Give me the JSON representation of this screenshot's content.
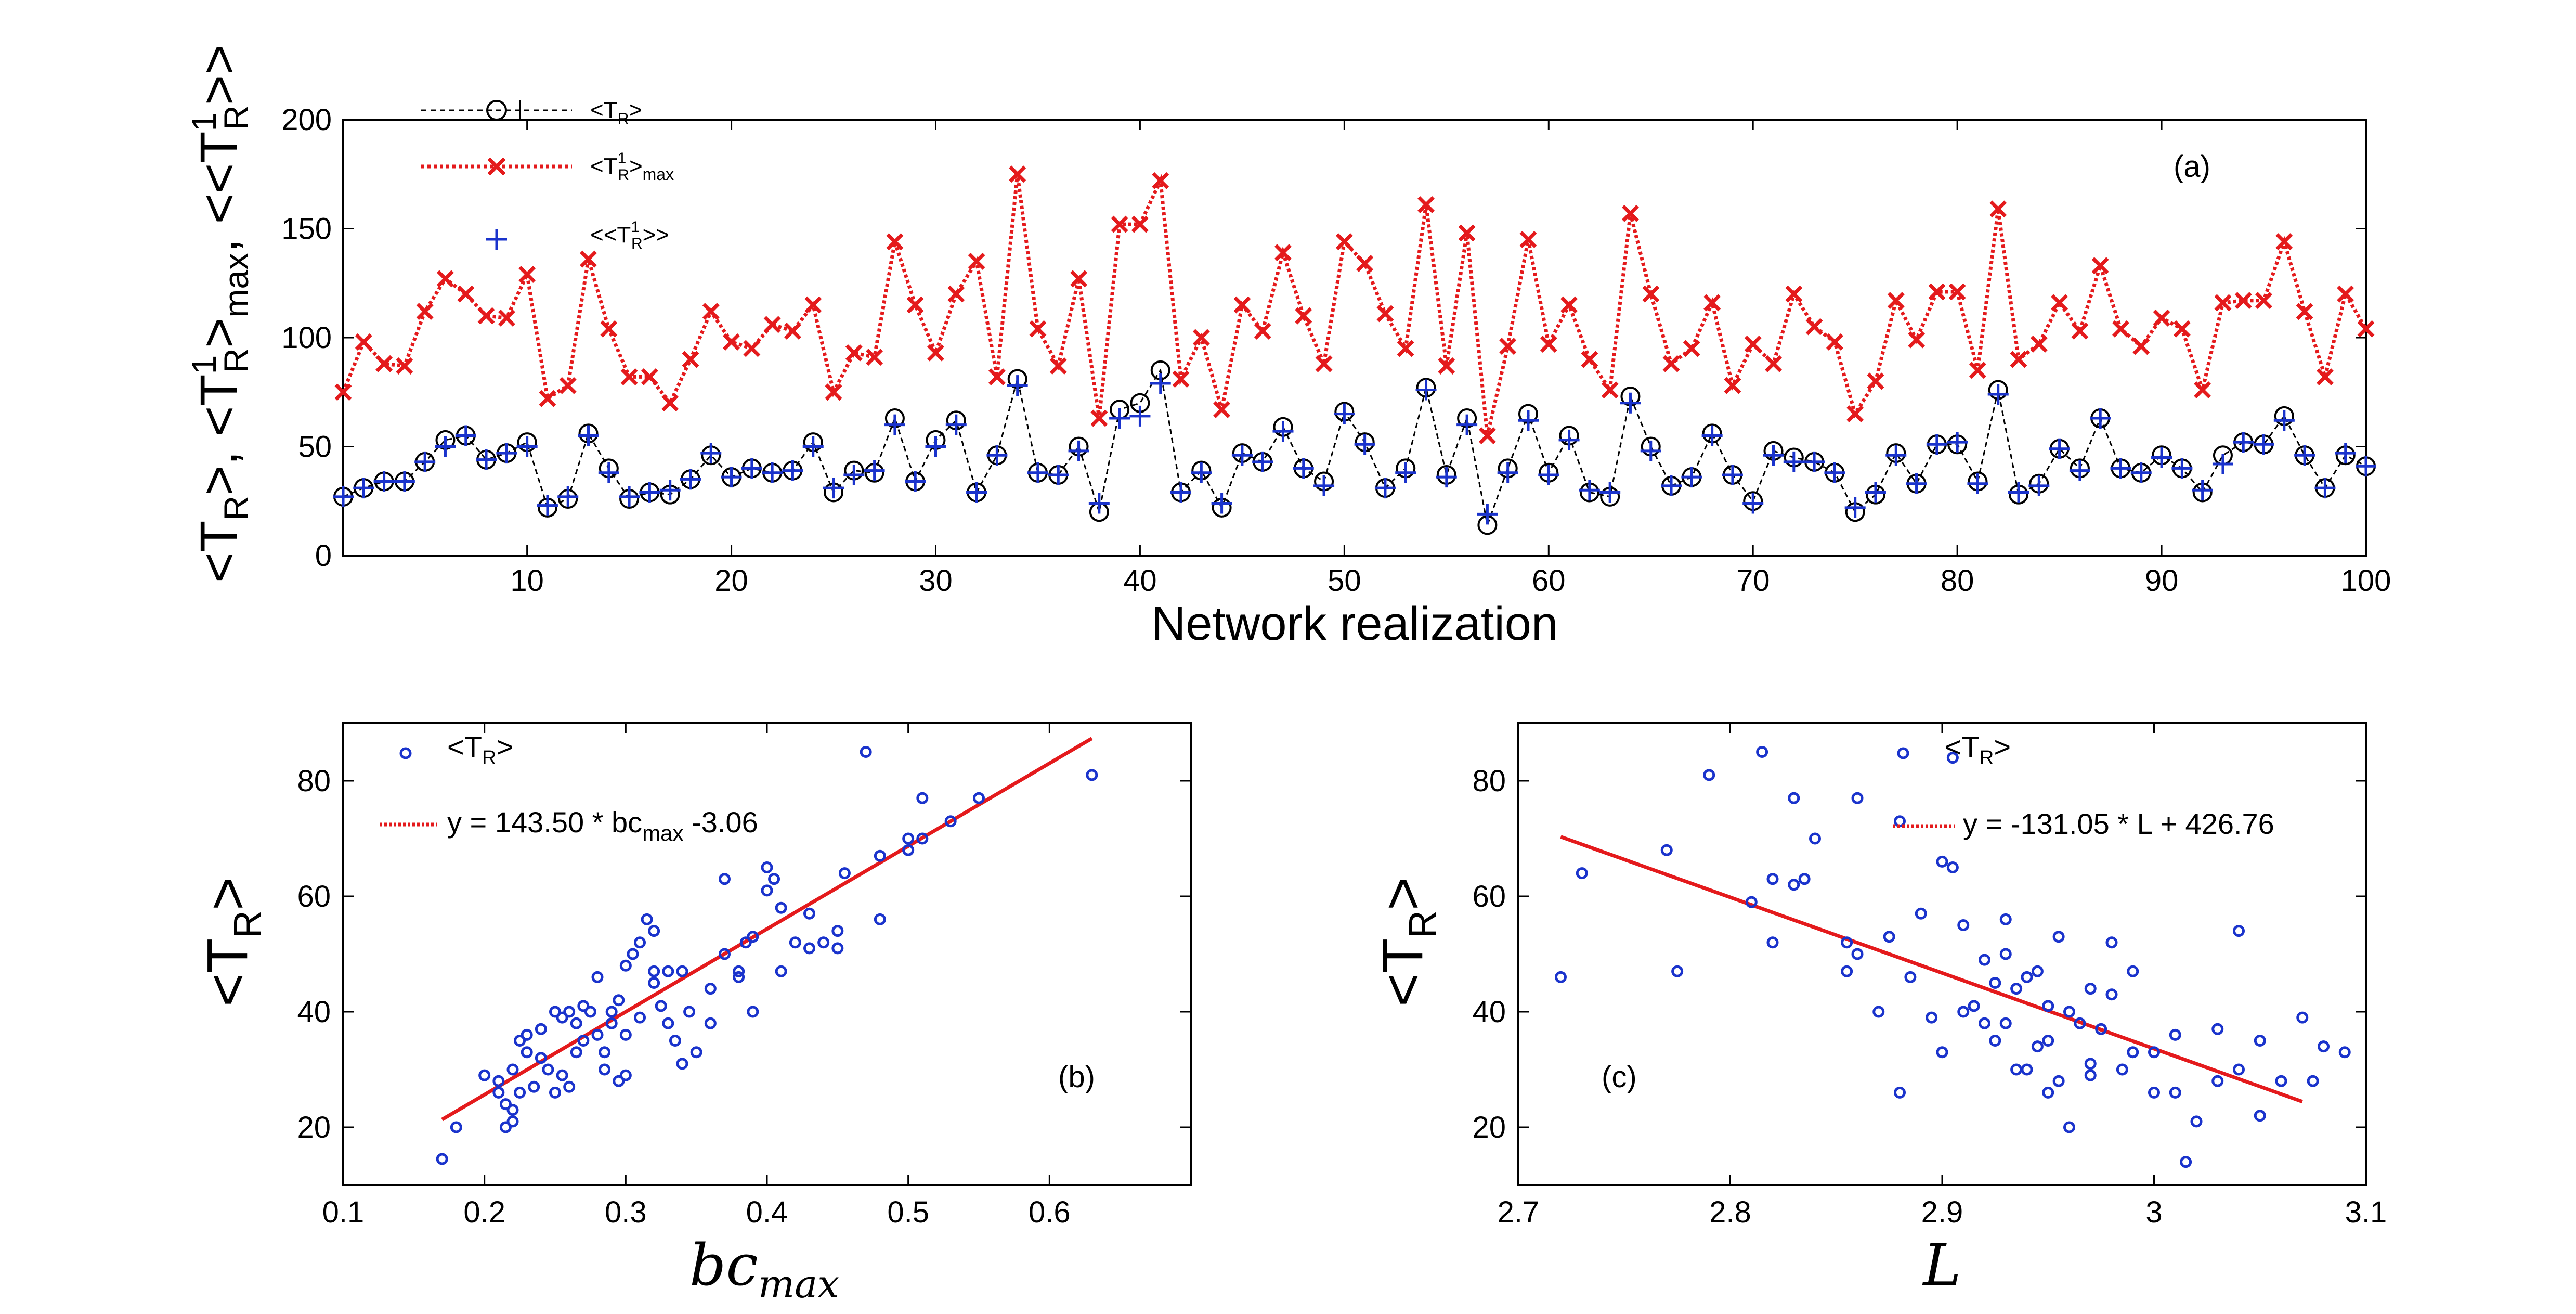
{
  "chart_data": [
    {
      "panel": "(a)",
      "type": "line",
      "xlabel": "Network realization",
      "ylabel": "<T_R>, <T_R^1>_max, <<T_R^1>>",
      "xlim": [
        1,
        100
      ],
      "ylim": [
        0,
        200
      ],
      "xticks": [
        10,
        20,
        30,
        40,
        50,
        60,
        70,
        80,
        90,
        100
      ],
      "yticks": [
        0,
        50,
        100,
        150,
        200
      ],
      "x": [
        1,
        2,
        3,
        4,
        5,
        6,
        7,
        8,
        9,
        10,
        11,
        12,
        13,
        14,
        15,
        16,
        17,
        18,
        19,
        20,
        21,
        22,
        23,
        24,
        25,
        26,
        27,
        28,
        29,
        30,
        31,
        32,
        33,
        34,
        35,
        36,
        37,
        38,
        39,
        40,
        41,
        42,
        43,
        44,
        45,
        46,
        47,
        48,
        49,
        50,
        51,
        52,
        53,
        54,
        55,
        56,
        57,
        58,
        59,
        60,
        61,
        62,
        63,
        64,
        65,
        66,
        67,
        68,
        69,
        70,
        71,
        72,
        73,
        74,
        75,
        76,
        77,
        78,
        79,
        80,
        81,
        82,
        83,
        84,
        85,
        86,
        87,
        88,
        89,
        90,
        91,
        92,
        93,
        94,
        95,
        96,
        97,
        98,
        99,
        100
      ],
      "series": [
        {
          "name": "<T_R>",
          "style": "black dashed, circle markers",
          "color": "#000000",
          "values": [
            27,
            31,
            34,
            34,
            43,
            53,
            55,
            44,
            47,
            52,
            22,
            26,
            56,
            40,
            26,
            29,
            28,
            35,
            46,
            36,
            40,
            38,
            39,
            52,
            29,
            39,
            38,
            63,
            34,
            53,
            62,
            29,
            46,
            81,
            38,
            37,
            50,
            20,
            67,
            70,
            85,
            29,
            39,
            22,
            47,
            43,
            59,
            40,
            34,
            66,
            52,
            31,
            40,
            77,
            37,
            63,
            14,
            40,
            65,
            38,
            55,
            29,
            27,
            73,
            50,
            32,
            36,
            56,
            37,
            25,
            48,
            45,
            43,
            38,
            20,
            28,
            47,
            33,
            51,
            51,
            34,
            76,
            28,
            33,
            49,
            40,
            63,
            40,
            38,
            46,
            40,
            29,
            46,
            52,
            51,
            64,
            46,
            31,
            46,
            41
          ]
        },
        {
          "name": "<T_R^1>_max",
          "style": "red dotted, x markers",
          "color": "#e41a1c",
          "values": [
            75,
            98,
            88,
            87,
            112,
            127,
            120,
            110,
            109,
            129,
            72,
            78,
            136,
            104,
            82,
            82,
            70,
            90,
            112,
            98,
            95,
            106,
            103,
            115,
            75,
            93,
            91,
            144,
            115,
            93,
            120,
            135,
            82,
            175,
            104,
            87,
            127,
            63,
            152,
            152,
            172,
            81,
            100,
            67,
            115,
            103,
            139,
            110,
            88,
            144,
            134,
            111,
            95,
            161,
            87,
            148,
            55,
            96,
            145,
            97,
            115,
            90,
            76,
            157,
            120,
            88,
            95,
            116,
            78,
            97,
            88,
            120,
            105,
            98,
            65,
            80,
            117,
            99,
            121,
            121,
            85,
            159,
            90,
            97,
            116,
            103,
            133,
            104,
            96,
            109,
            104,
            76,
            116,
            117,
            117,
            144,
            112,
            82,
            120,
            104
          ]
        },
        {
          "name": "<<T_R^1>>",
          "style": "blue plus markers",
          "color": "#1a33cc",
          "values": [
            27,
            31,
            34,
            34,
            43,
            50,
            55,
            44,
            47,
            50,
            23,
            27,
            55,
            38,
            27,
            29,
            30,
            35,
            47,
            36,
            40,
            38,
            39,
            50,
            31,
            37,
            39,
            60,
            34,
            50,
            60,
            29,
            46,
            78,
            38,
            37,
            48,
            24,
            63,
            64,
            79,
            29,
            38,
            24,
            46,
            43,
            57,
            40,
            32,
            65,
            51,
            31,
            38,
            76,
            36,
            60,
            19,
            38,
            62,
            37,
            53,
            30,
            29,
            70,
            48,
            32,
            36,
            55,
            37,
            24,
            46,
            43,
            43,
            38,
            22,
            29,
            46,
            33,
            51,
            52,
            33,
            74,
            29,
            32,
            49,
            39,
            63,
            40,
            38,
            45,
            40,
            30,
            42,
            52,
            51,
            62,
            46,
            31,
            47,
            41
          ]
        }
      ]
    },
    {
      "panel": "(b)",
      "type": "scatter",
      "xlabel": "bc_max",
      "ylabel": "<T_R>",
      "xlim": [
        0.1,
        0.7
      ],
      "ylim": [
        10,
        90
      ],
      "xticks": [
        0.1,
        0.2,
        0.3,
        0.4,
        0.5,
        0.6
      ],
      "yticks": [
        20,
        40,
        60,
        80
      ],
      "series": [
        {
          "name": "<T_R>",
          "color": "#1a33cc",
          "points": [
            [
              0.17,
              14.5
            ],
            [
              0.18,
              20
            ],
            [
              0.2,
              29
            ],
            [
              0.21,
              26
            ],
            [
              0.21,
              28
            ],
            [
              0.215,
              20
            ],
            [
              0.215,
              24
            ],
            [
              0.22,
              23
            ],
            [
              0.22,
              21
            ],
            [
              0.22,
              30
            ],
            [
              0.225,
              26
            ],
            [
              0.225,
              35
            ],
            [
              0.23,
              33
            ],
            [
              0.23,
              36
            ],
            [
              0.235,
              27
            ],
            [
              0.24,
              37
            ],
            [
              0.24,
              32
            ],
            [
              0.245,
              30
            ],
            [
              0.25,
              40
            ],
            [
              0.25,
              26
            ],
            [
              0.255,
              29
            ],
            [
              0.255,
              39
            ],
            [
              0.26,
              40
            ],
            [
              0.26,
              27
            ],
            [
              0.265,
              38
            ],
            [
              0.265,
              33
            ],
            [
              0.27,
              35
            ],
            [
              0.27,
              41
            ],
            [
              0.275,
              40
            ],
            [
              0.28,
              36
            ],
            [
              0.28,
              46
            ],
            [
              0.285,
              33
            ],
            [
              0.285,
              30
            ],
            [
              0.29,
              38
            ],
            [
              0.29,
              40
            ],
            [
              0.295,
              28
            ],
            [
              0.295,
              42
            ],
            [
              0.3,
              36
            ],
            [
              0.3,
              48
            ],
            [
              0.3,
              29
            ],
            [
              0.305,
              50
            ],
            [
              0.31,
              52
            ],
            [
              0.31,
              39
            ],
            [
              0.315,
              56
            ],
            [
              0.32,
              47
            ],
            [
              0.32,
              45
            ],
            [
              0.32,
              54
            ],
            [
              0.325,
              41
            ],
            [
              0.33,
              47
            ],
            [
              0.33,
              38
            ],
            [
              0.335,
              35
            ],
            [
              0.34,
              47
            ],
            [
              0.34,
              31
            ],
            [
              0.345,
              40
            ],
            [
              0.35,
              33
            ],
            [
              0.36,
              38
            ],
            [
              0.36,
              44
            ],
            [
              0.37,
              50
            ],
            [
              0.37,
              63
            ],
            [
              0.38,
              46
            ],
            [
              0.38,
              47
            ],
            [
              0.385,
              52
            ],
            [
              0.39,
              40
            ],
            [
              0.39,
              53
            ],
            [
              0.4,
              61
            ],
            [
              0.4,
              65
            ],
            [
              0.405,
              63
            ],
            [
              0.41,
              47
            ],
            [
              0.41,
              58
            ],
            [
              0.42,
              52
            ],
            [
              0.43,
              51
            ],
            [
              0.43,
              57
            ],
            [
              0.44,
              52
            ],
            [
              0.45,
              54
            ],
            [
              0.45,
              51
            ],
            [
              0.455,
              64
            ],
            [
              0.47,
              85
            ],
            [
              0.48,
              67
            ],
            [
              0.48,
              56
            ],
            [
              0.5,
              70
            ],
            [
              0.5,
              68
            ],
            [
              0.51,
              77
            ],
            [
              0.51,
              70
            ],
            [
              0.53,
              73
            ],
            [
              0.55,
              77
            ],
            [
              0.63,
              81
            ]
          ]
        },
        {
          "name": "y = 143.50 * bc_max -3.06",
          "type": "line",
          "color": "#e41a1c",
          "slope": 143.5,
          "intercept": -3.06,
          "x_range": [
            0.17,
            0.63
          ]
        }
      ],
      "legend": [
        "<T_R>",
        "y = 143.50 * bc_max -3.06"
      ]
    },
    {
      "panel": "(c)",
      "type": "scatter",
      "xlabel": "L",
      "ylabel": "<T_R>",
      "xlim": [
        2.7,
        3.1
      ],
      "ylim": [
        10,
        90
      ],
      "xticks": [
        2.7,
        2.8,
        2.9,
        3.0,
        3.1
      ],
      "yticks": [
        20,
        40,
        60,
        80
      ],
      "series": [
        {
          "name": "<T_R>",
          "color": "#1a33cc",
          "points": [
            [
              2.72,
              46
            ],
            [
              2.73,
              64
            ],
            [
              2.77,
              68
            ],
            [
              2.775,
              47
            ],
            [
              2.79,
              81
            ],
            [
              2.81,
              59
            ],
            [
              2.815,
              85
            ],
            [
              2.82,
              63
            ],
            [
              2.82,
              52
            ],
            [
              2.83,
              62
            ],
            [
              2.83,
              77
            ],
            [
              2.835,
              63
            ],
            [
              2.84,
              70
            ],
            [
              2.855,
              47
            ],
            [
              2.855,
              52
            ],
            [
              2.86,
              77
            ],
            [
              2.86,
              50
            ],
            [
              2.87,
              40
            ],
            [
              2.875,
              53
            ],
            [
              2.88,
              73
            ],
            [
              2.88,
              26
            ],
            [
              2.885,
              46
            ],
            [
              2.89,
              57
            ],
            [
              2.895,
              39
            ],
            [
              2.9,
              33
            ],
            [
              2.9,
              66
            ],
            [
              2.905,
              84
            ],
            [
              2.905,
              65
            ],
            [
              2.91,
              55
            ],
            [
              2.91,
              40
            ],
            [
              2.915,
              41
            ],
            [
              2.92,
              38
            ],
            [
              2.92,
              49
            ],
            [
              2.925,
              45
            ],
            [
              2.925,
              35
            ],
            [
              2.93,
              50
            ],
            [
              2.93,
              56
            ],
            [
              2.93,
              38
            ],
            [
              2.935,
              30
            ],
            [
              2.935,
              44
            ],
            [
              2.94,
              46
            ],
            [
              2.94,
              30
            ],
            [
              2.945,
              47
            ],
            [
              2.945,
              34
            ],
            [
              2.95,
              35
            ],
            [
              2.95,
              41
            ],
            [
              2.95,
              26
            ],
            [
              2.955,
              53
            ],
            [
              2.955,
              28
            ],
            [
              2.96,
              40
            ],
            [
              2.96,
              20
            ],
            [
              2.965,
              38
            ],
            [
              2.97,
              29
            ],
            [
              2.97,
              44
            ],
            [
              2.97,
              31
            ],
            [
              2.975,
              37
            ],
            [
              2.98,
              43
            ],
            [
              2.98,
              52
            ],
            [
              2.985,
              30
            ],
            [
              2.99,
              33
            ],
            [
              2.99,
              47
            ],
            [
              3.0,
              33
            ],
            [
              3.0,
              26
            ],
            [
              3.01,
              36
            ],
            [
              3.01,
              26
            ],
            [
              3.015,
              14
            ],
            [
              3.02,
              21
            ],
            [
              3.03,
              28
            ],
            [
              3.03,
              37
            ],
            [
              3.04,
              54
            ],
            [
              3.04,
              30
            ],
            [
              3.05,
              22
            ],
            [
              3.05,
              35
            ],
            [
              3.06,
              28
            ],
            [
              3.07,
              39
            ],
            [
              3.075,
              28
            ],
            [
              3.08,
              34
            ],
            [
              3.09,
              33
            ]
          ]
        },
        {
          "name": "y = -131.05 * L + 426.76",
          "type": "line",
          "color": "#e41a1c",
          "slope": -131.05,
          "intercept": 426.76,
          "x_range": [
            2.72,
            3.07
          ]
        }
      ],
      "legend": [
        "<T_R>",
        "y = -131.05 * L + 426.76"
      ]
    }
  ]
}
